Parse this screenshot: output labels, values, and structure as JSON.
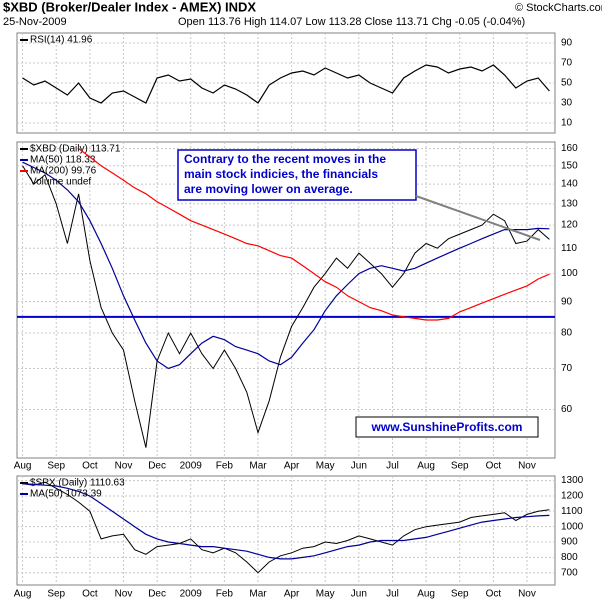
{
  "header": {
    "symbol": "$XBD (Broker/Dealer Index - AMEX) INDX",
    "date": "25-Nov-2009",
    "quote": "Open 113.76  High 114.07  Low 113.28  Close 113.71  Chg -0.05 (-0.04%)",
    "source": "© StockCharts.com"
  },
  "categories": [
    "Aug",
    null,
    null,
    "Sep",
    null,
    null,
    "Oct",
    null,
    null,
    "Nov",
    null,
    null,
    "Dec",
    null,
    null,
    "2009",
    null,
    null,
    "Feb",
    null,
    null,
    "Mar",
    null,
    null,
    "Apr",
    null,
    null,
    "May",
    null,
    null,
    "Jun",
    null,
    null,
    "Jul",
    null,
    null,
    "Aug",
    null,
    null,
    "Sep",
    null,
    null,
    "Oct",
    null,
    null,
    "Nov",
    null,
    null
  ],
  "chart_data": [
    {
      "type": "line",
      "ylim": [
        0,
        100
      ],
      "yticks": [
        10,
        30,
        50,
        70,
        90
      ],
      "grid": true,
      "series": [
        {
          "name": "RSI(14) 41.96",
          "color": "#000000",
          "values": [
            55,
            48,
            52,
            45,
            38,
            50,
            35,
            30,
            40,
            42,
            36,
            30,
            55,
            58,
            52,
            54,
            45,
            40,
            48,
            44,
            38,
            30,
            48,
            55,
            60,
            62,
            58,
            65,
            60,
            55,
            58,
            50,
            45,
            40,
            55,
            62,
            68,
            66,
            60,
            64,
            66,
            62,
            68,
            58,
            45,
            52,
            55,
            41.96
          ]
        }
      ]
    },
    {
      "type": "line",
      "log": true,
      "ylim": [
        50,
        164
      ],
      "yticks": [
        60,
        70,
        80,
        90,
        100,
        110,
        120,
        130,
        140,
        150,
        160
      ],
      "grid": true,
      "hlines": [
        {
          "value": 85,
          "color": "#0000cc"
        }
      ],
      "legend_extra": "Volume undef",
      "annotation": [
        "Contrary to the recent moves in the",
        "main stock indicies, the financials",
        "are moving lower on average."
      ],
      "watermark": "www.SunshineProfits.com",
      "series": [
        {
          "name": "$XBD (Daily) 113.71",
          "color": "#000000",
          "values": [
            150,
            140,
            145,
            130,
            112,
            135,
            105,
            88,
            80,
            75,
            62,
            52,
            72,
            80,
            74,
            80,
            74,
            70,
            75,
            70,
            64,
            55,
            62,
            73,
            82,
            88,
            95,
            100,
            106,
            102,
            108,
            104,
            100,
            95,
            100,
            108,
            112,
            110,
            114,
            116,
            118,
            120,
            125,
            122,
            112,
            113,
            118,
            113.71
          ]
        },
        {
          "name": "MA(50) 118.33",
          "color": "#000099",
          "values": [
            152,
            149,
            146,
            142,
            137,
            131,
            122,
            112,
            102,
            92,
            84,
            77,
            72,
            70,
            71,
            74,
            77,
            79,
            78,
            76,
            75,
            74,
            72,
            71,
            73,
            77,
            81,
            87,
            92,
            96,
            100,
            102,
            103,
            102,
            101,
            102,
            104,
            106,
            108,
            110,
            112,
            114,
            116,
            118,
            118,
            118,
            118.5,
            118.33
          ]
        },
        {
          "name": "MA(200) 99.76",
          "color": "#ff0000",
          "values": [
            null,
            null,
            null,
            null,
            null,
            160,
            155,
            150,
            146,
            142,
            138,
            135,
            131,
            128,
            125,
            122,
            120,
            118,
            116,
            114,
            112,
            111,
            109,
            107,
            106,
            103,
            100,
            97,
            95,
            92,
            90,
            88,
            87,
            85.6,
            85,
            84.5,
            84,
            84,
            84.5,
            86.6,
            88,
            89.5,
            91,
            92.5,
            94,
            95.5,
            98,
            99.76
          ]
        }
      ]
    },
    {
      "type": "line",
      "ylim": [
        620,
        1330
      ],
      "yticks": [
        700,
        800,
        900,
        1000,
        1100,
        1200,
        1300
      ],
      "grid": true,
      "series": [
        {
          "name": "$SPX (Daily) 1110.63",
          "color": "#000000",
          "values": [
            1280,
            1270,
            1290,
            1250,
            1210,
            1160,
            1100,
            920,
            940,
            950,
            850,
            820,
            870,
            880,
            890,
            920,
            850,
            830,
            860,
            830,
            770,
            700,
            770,
            810,
            830,
            860,
            870,
            900,
            890,
            910,
            940,
            920,
            900,
            880,
            940,
            980,
            1000,
            1010,
            1020,
            1030,
            1060,
            1070,
            1080,
            1090,
            1040,
            1080,
            1100,
            1110.63
          ]
        },
        {
          "name": "MA(50) 1073.39",
          "color": "#000099",
          "values": [
            1280,
            1275,
            1270,
            1265,
            1250,
            1230,
            1200,
            1150,
            1100,
            1050,
            1000,
            950,
            920,
            900,
            890,
            880,
            870,
            870,
            860,
            850,
            840,
            820,
            800,
            790,
            790,
            800,
            810,
            830,
            850,
            870,
            880,
            900,
            910,
            910,
            910,
            920,
            930,
            950,
            970,
            990,
            1010,
            1030,
            1040,
            1050,
            1060,
            1065,
            1070,
            1073.39
          ]
        }
      ]
    }
  ]
}
